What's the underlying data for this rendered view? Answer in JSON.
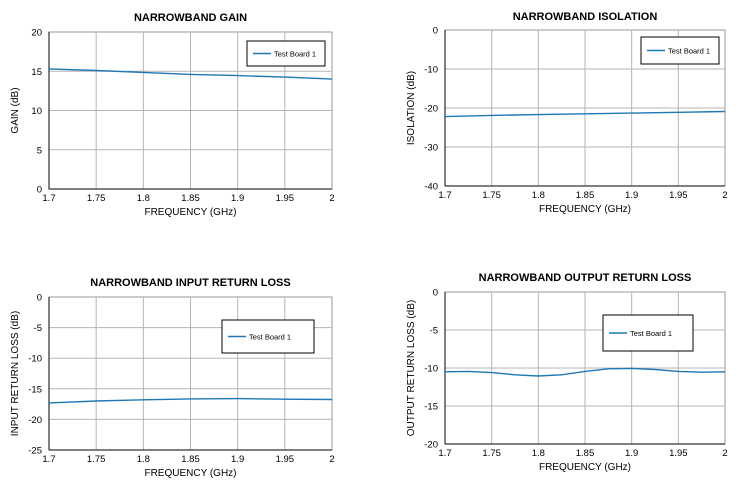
{
  "chart_data": [
    {
      "type": "line",
      "title": "NARROWBAND GAIN",
      "xlabel": "FREQUENCY (GHz)",
      "ylabel": "GAIN (dB)",
      "xlim": [
        1.7,
        2.0
      ],
      "ylim": [
        0,
        20
      ],
      "xticks": [
        "1.7",
        "1.75",
        "1.8",
        "1.85",
        "1.9",
        "1.95",
        "2"
      ],
      "yticks": [
        "0",
        "5",
        "10",
        "15",
        "20"
      ],
      "grid": true,
      "legend": "top-right",
      "color": "#1f77b4",
      "series": [
        {
          "name": "Test Board 1",
          "x": [
            1.7,
            1.75,
            1.8,
            1.85,
            1.9,
            1.95,
            2.0
          ],
          "y": [
            15.3,
            15.1,
            14.85,
            14.6,
            14.45,
            14.25,
            14.0
          ]
        }
      ]
    },
    {
      "type": "line",
      "title": "NARROWBAND ISOLATION",
      "xlabel": "FREQUENCY (GHz)",
      "ylabel": "ISOLATION (dB)",
      "xlim": [
        1.7,
        2.0
      ],
      "ylim": [
        -40,
        0
      ],
      "xticks": [
        "1.7",
        "1.75",
        "1.8",
        "1.85",
        "1.9",
        "1.95",
        "2"
      ],
      "yticks": [
        "-40",
        "-30",
        "-20",
        "-10",
        "0"
      ],
      "grid": true,
      "legend": "top-right",
      "color": "#1f77b4",
      "series": [
        {
          "name": "Test Board 1",
          "x": [
            1.7,
            1.75,
            1.8,
            1.85,
            1.9,
            1.95,
            2.0
          ],
          "y": [
            -22.2,
            -21.9,
            -21.7,
            -21.5,
            -21.3,
            -21.1,
            -20.9
          ]
        }
      ]
    },
    {
      "type": "line",
      "title": "NARROWBAND INPUT RETURN LOSS",
      "xlabel": "FREQUENCY (GHz)",
      "ylabel": "INPUT RETURN LOSS (dB)",
      "xlim": [
        1.7,
        2.0
      ],
      "ylim": [
        -25,
        0
      ],
      "xticks": [
        "1.7",
        "1.75",
        "1.8",
        "1.85",
        "1.9",
        "1.95",
        "2"
      ],
      "yticks": [
        "-25",
        "-20",
        "-15",
        "-10",
        "-5",
        "0"
      ],
      "grid": true,
      "legend": "top-right",
      "color": "#1f77b4",
      "series": [
        {
          "name": "Test Board 1",
          "x": [
            1.7,
            1.75,
            1.8,
            1.85,
            1.9,
            1.95,
            2.0
          ],
          "y": [
            -17.3,
            -17.0,
            -16.8,
            -16.65,
            -16.6,
            -16.7,
            -16.75
          ]
        }
      ]
    },
    {
      "type": "line",
      "title": "NARROWBAND OUTPUT RETURN LOSS",
      "xlabel": "FREQUENCY (GHz)",
      "ylabel": "OUTPUT RETURN LOSS (dB)",
      "xlim": [
        1.7,
        2.0
      ],
      "ylim": [
        -20,
        0
      ],
      "xticks": [
        "1.7",
        "1.75",
        "1.8",
        "1.85",
        "1.9",
        "1.95",
        "2"
      ],
      "yticks": [
        "-20",
        "-15",
        "-10",
        "-5",
        "0"
      ],
      "grid": true,
      "legend": "top-right",
      "color": "#1f77b4",
      "series": [
        {
          "name": "Test Board 1",
          "x": [
            1.7,
            1.725,
            1.75,
            1.775,
            1.8,
            1.825,
            1.85,
            1.875,
            1.9,
            1.925,
            1.95,
            1.975,
            2.0
          ],
          "y": [
            -10.5,
            -10.45,
            -10.6,
            -10.9,
            -11.05,
            -10.9,
            -10.45,
            -10.1,
            -10.05,
            -10.2,
            -10.45,
            -10.55,
            -10.5
          ]
        }
      ]
    }
  ]
}
